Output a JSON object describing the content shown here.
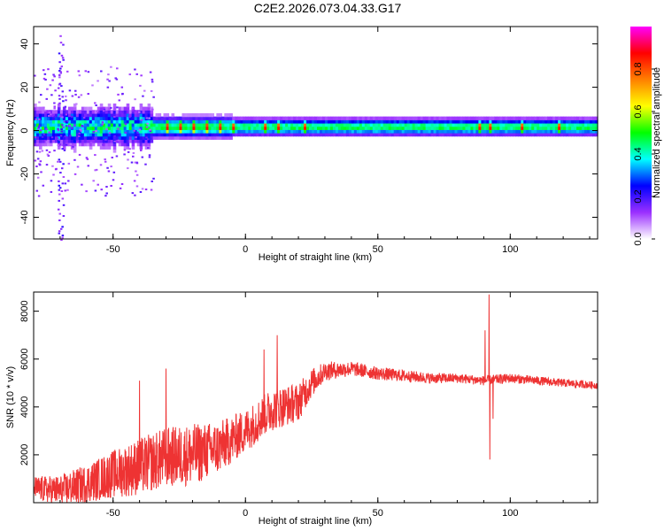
{
  "title": "C2E2.2026.073.04.33.G17",
  "chart_data": [
    {
      "type": "heatmap",
      "xlabel": "Height of straight line (km)",
      "ylabel": "Frequency (Hz)",
      "xlim": [
        -80,
        133
      ],
      "ylim": [
        -50,
        48
      ],
      "xticks": [
        -50,
        0,
        50,
        100
      ],
      "xtick_labels": [
        "-50",
        "0",
        "50",
        "100"
      ],
      "yticks": [
        -40,
        -20,
        0,
        20,
        40
      ],
      "ytick_labels": [
        "-40",
        "-20",
        "0",
        "20",
        "40"
      ],
      "colorbar": {
        "label": "Normalized spectral amplitude",
        "range": [
          0,
          1
        ],
        "ticks": [
          0.0,
          0.2,
          0.4,
          0.6,
          0.8
        ],
        "tick_labels": [
          "0.0",
          "0.2",
          "0.4",
          "0.6",
          "0.8"
        ],
        "colormap": [
          "#ffffff",
          "#9b30ff",
          "#0000ff",
          "#00ffff",
          "#00ff00",
          "#ffff00",
          "#ff8000",
          "#ff0000",
          "#ff00ff"
        ]
      },
      "band_center_hz": 1,
      "band_halfwidth_hz": 4,
      "peak_locations_km": [
        -30,
        -25,
        -20,
        -15,
        -10,
        -5,
        7,
        12,
        22,
        88,
        92,
        104,
        118
      ]
    },
    {
      "type": "line",
      "xlabel": "Height of straight line (km)",
      "ylabel": "SNR (10 * v/v)",
      "xlim": [
        -80,
        133
      ],
      "ylim": [
        0,
        8800
      ],
      "xticks": [
        -50,
        0,
        50,
        100
      ],
      "xtick_labels": [
        "-50",
        "0",
        "50",
        "100"
      ],
      "yticks": [
        2000,
        4000,
        6000,
        8000
      ],
      "ytick_labels": [
        "2000",
        "4000",
        "6000",
        "8000"
      ],
      "color": "#ee3333",
      "series": [
        {
          "name": "SNR",
          "trend_x": [
            -80,
            -70,
            -60,
            -50,
            -40,
            -30,
            -20,
            -10,
            0,
            10,
            20,
            25,
            30,
            40,
            50,
            60,
            70,
            80,
            90,
            100,
            110,
            120,
            133
          ],
          "trend_y": [
            600,
            500,
            800,
            1200,
            1500,
            1900,
            2000,
            2300,
            3000,
            3900,
            4200,
            5000,
            5500,
            5600,
            5400,
            5300,
            5200,
            5200,
            5100,
            5200,
            5100,
            5000,
            4900
          ],
          "noise_x": [
            -80,
            -60,
            -40,
            -20,
            0,
            10,
            20,
            30,
            40,
            60,
            80,
            100,
            133
          ],
          "noise_amp": [
            500,
            800,
            1200,
            1300,
            900,
            900,
            800,
            400,
            300,
            250,
            200,
            200,
            150
          ],
          "spikes": [
            {
              "x": -30,
              "y": 5600
            },
            {
              "x": -40,
              "y": 5100
            },
            {
              "x": 7,
              "y": 6400
            },
            {
              "x": 12,
              "y": 7000
            },
            {
              "x": 92,
              "y": 8700
            },
            {
              "x": 92.3,
              "y": 1800
            },
            {
              "x": 90.5,
              "y": 7200
            },
            {
              "x": 93.5,
              "y": 3500
            }
          ]
        }
      ]
    }
  ]
}
